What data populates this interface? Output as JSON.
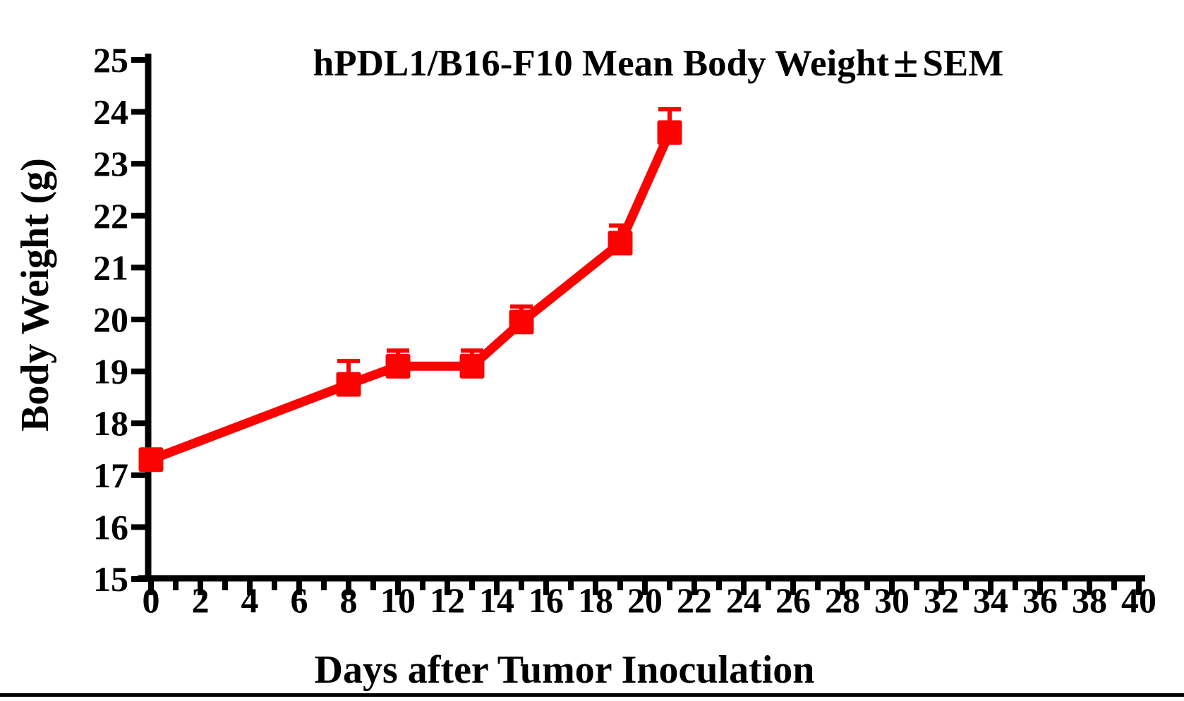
{
  "title": {
    "part1": "hPDL1/B16-F10 Mean Body Weight",
    "pm": "±",
    "part2": "SEM"
  },
  "axes": {
    "x_label": "Days after Tumor Inoculation",
    "y_label": "Body Weight (g)"
  },
  "colors": {
    "series": "#f90400",
    "axis": "#000000",
    "background": "#ffffff"
  },
  "chart_data": {
    "type": "line",
    "title": "hPDL1/B16-F10 Mean Body Weight ± SEM",
    "xlabel": "Days after Tumor Inoculation",
    "ylabel": "Body Weight (g)",
    "xlim": [
      0,
      40
    ],
    "ylim": [
      15,
      25
    ],
    "x_label_step": 2,
    "x_minor_tick_step": 1,
    "y_tick_step": 1,
    "grid": false,
    "legend_position": "none",
    "series": [
      {
        "name": "hPDL1/B16-F10",
        "color": "#f90400",
        "marker": "square",
        "x": [
          0,
          8,
          10,
          13,
          15,
          19,
          21
        ],
        "y": [
          17.3,
          18.75,
          19.1,
          19.1,
          19.95,
          21.47,
          23.6
        ],
        "sem_upper": [
          0,
          0.45,
          0.3,
          0.3,
          0.3,
          0.34,
          0.45
        ]
      }
    ]
  }
}
